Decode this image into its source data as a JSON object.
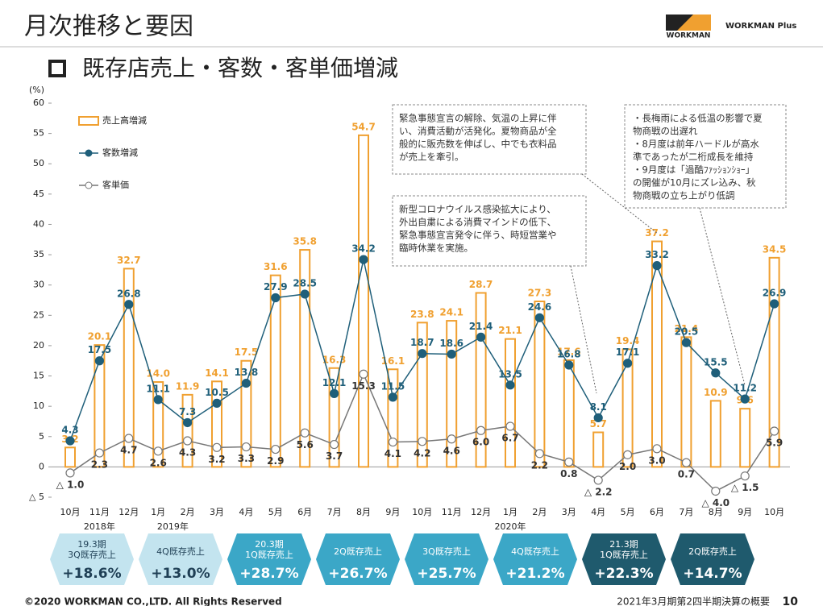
{
  "header": {
    "title": "月次推移と要因",
    "subtitle": "既存店売上・客数・客単価増減",
    "logo_main": "WORKMAN",
    "logo_plus": "WORKMAN Plus"
  },
  "chart_data": {
    "type": "bar-line",
    "unit": "(%)",
    "categories": [
      "10月",
      "11月",
      "12月",
      "1月",
      "2月",
      "3月",
      "4月",
      "5月",
      "6月",
      "7月",
      "8月",
      "9月",
      "10月",
      "11月",
      "12月",
      "1月",
      "2月",
      "3月",
      "4月",
      "5月",
      "6月",
      "7月",
      "8月",
      "9月",
      "10月"
    ],
    "years": [
      "2018年",
      "2019年",
      "2020年"
    ],
    "ylim": [
      -5,
      60
    ],
    "yticks": [
      {
        "value": -5,
        "label": "△ 5"
      },
      0,
      5,
      10,
      15,
      20,
      25,
      30,
      35,
      40,
      45,
      50,
      55,
      60
    ],
    "series": [
      {
        "name": "売上高増減",
        "type": "bar",
        "color": "#f0a030",
        "values": [
          3.2,
          20.1,
          32.7,
          14.0,
          11.9,
          14.1,
          17.5,
          31.6,
          35.8,
          16.3,
          54.7,
          16.1,
          23.8,
          24.1,
          28.7,
          21.1,
          27.3,
          17.6,
          5.7,
          19.4,
          37.2,
          21.4,
          10.9,
          9.6,
          34.5
        ],
        "value_labels": [
          "3.2",
          "20.1",
          "32.7",
          "14.0",
          "11.9",
          "14.1",
          "17.5",
          "31.6",
          "35.8",
          "16.3",
          "54.7",
          "16.1",
          "23.8",
          "24.1",
          "28.7",
          "21.1",
          "27.3",
          "17.6",
          "5.7",
          "19.4",
          "37.2",
          "21.4",
          "10.9",
          "9.6",
          "34.5"
        ]
      },
      {
        "name": "客数増減",
        "type": "line",
        "color": "#1f5f7a",
        "values": [
          4.3,
          17.5,
          26.8,
          11.1,
          7.3,
          10.5,
          13.8,
          27.9,
          28.5,
          12.1,
          34.2,
          11.5,
          18.7,
          18.6,
          21.4,
          13.5,
          24.6,
          16.8,
          8.1,
          17.1,
          33.2,
          20.5,
          15.5,
          11.2,
          26.9
        ],
        "value_labels": [
          "4.3",
          "17.5",
          "26.8",
          "11.1",
          "7.3",
          "10.5",
          "13.8",
          "27.9",
          "28.5",
          "12.1",
          "34.2",
          "11.5",
          "18.7",
          "18.6",
          "21.4",
          "13.5",
          "24.6",
          "16.8",
          "8.1",
          "17.1",
          "33.2",
          "20.5",
          "15.5",
          "11.2",
          "26.9"
        ]
      },
      {
        "name": "客単価",
        "type": "line",
        "color": "#777777",
        "values": [
          -1.0,
          2.3,
          4.7,
          2.6,
          4.3,
          3.2,
          3.3,
          2.9,
          5.6,
          3.7,
          15.3,
          4.1,
          4.2,
          4.6,
          6.0,
          6.7,
          2.2,
          0.8,
          -2.2,
          2.0,
          3.0,
          0.7,
          -4.0,
          -1.5,
          5.9
        ],
        "value_labels": [
          "△ 1.0",
          "2.3",
          "4.7",
          "2.6",
          "4.3",
          "3.2",
          "3.3",
          "2.9",
          "5.6",
          "3.7",
          "15.3",
          "4.1",
          "4.2",
          "4.6",
          "6.0",
          "6.7",
          "2.2",
          "0.8",
          "△ 2.2",
          "2.0",
          "3.0",
          "0.7",
          "△ 4.0",
          "△ 1.5",
          "5.9"
        ]
      }
    ],
    "annotations": [
      [
        "緊急事態宣言の解除、気温の上昇に伴",
        "い、消費活動が活発化。夏物商品が全",
        "般的に販売数を伸ばし、中でも衣料品",
        "が売上を牽引。"
      ],
      [
        "新型コロナウイルス感染拡大により、",
        "外出自粛による消費マインドの低下、",
        "緊急事態宣言発令に伴う、時短営業や",
        "臨時休業を実施。"
      ],
      [
        "・長梅雨による低温の影響で夏",
        "物商戦の出遅れ",
        "・8月度は前年ハードルが高水",
        "準であったが二桁成長を維持",
        "・9月度は「過酷ﾌｧｯｼｮﾝｼｮｰ」",
        "の開催が10月にズレ込み、秋",
        "物商戦の立ち上がり低調"
      ]
    ]
  },
  "badges": [
    {
      "lines": [
        "19.3期",
        "3Q既存売上"
      ],
      "value": "+18.6%"
    },
    {
      "lines": [
        "4Q既存売上"
      ],
      "value": "+13.0%"
    },
    {
      "lines": [
        "20.3期",
        "1Q既存売上"
      ],
      "value": "+28.7%"
    },
    {
      "lines": [
        "2Q既存売上"
      ],
      "value": "+26.7%"
    },
    {
      "lines": [
        "3Q既存売上"
      ],
      "value": "+25.7%"
    },
    {
      "lines": [
        "4Q既存売上"
      ],
      "value": "+21.2%"
    },
    {
      "lines": [
        "21.3期",
        "1Q既存売上"
      ],
      "value": "+22.3%"
    },
    {
      "lines": [
        "2Q既存売上"
      ],
      "value": "+14.7%"
    }
  ],
  "footer": {
    "copyright": "©2020 WORKMAN CO.,LTD. All Rights Reserved",
    "doc": "2021年3月期第2四半期決算の概要",
    "page": "10"
  }
}
